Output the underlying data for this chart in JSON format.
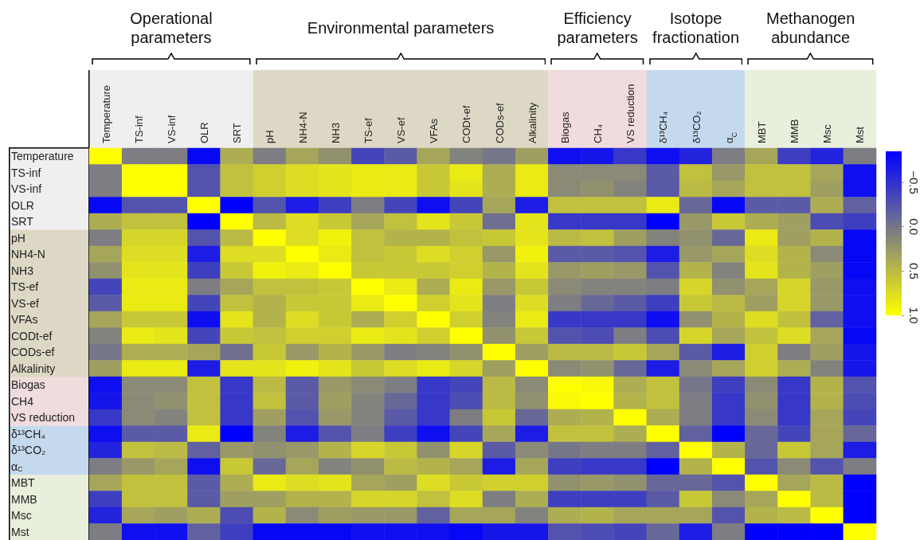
{
  "chart_data": {
    "type": "heatmap",
    "annotations": [
      "Operational parameters",
      "Environmental parameters",
      "Efficiency parameters",
      "Isotope fractionation",
      "Methanogen abundance"
    ],
    "categories": [
      "Temperature",
      "TS-inf",
      "VS-inf",
      "OLR",
      "SRT",
      "pH",
      "NH4-N",
      "NH3",
      "TS-ef",
      "VS-ef",
      "VFAs",
      "CODt-ef",
      "CODs-ef",
      "Alkalinity",
      "Biogas",
      "CH₄",
      "VS reduction",
      "δ¹³CH₄",
      "δ¹³CO₂",
      "α$_{C}$",
      "MBT",
      "MMB",
      "Msc",
      "Mst"
    ],
    "y_categories": [
      "Temperature",
      "TS-inf",
      "VS-inf",
      "OLR",
      "SRT",
      "pH",
      "NH4-N",
      "NH3",
      "TS-ef",
      "VS-ef",
      "VFAs",
      "CODt-ef",
      "CODs-ef",
      "Alkalinity",
      "Biogas",
      "CH4",
      "VS reduction",
      "δ¹³CH₄",
      "δ¹³CO₂",
      "α$_{C}$",
      "MBT",
      "MMB",
      "Msc",
      "Mst"
    ],
    "cells": [
      [
        1,
        0.05,
        0.05,
        -0.8,
        0.4,
        0.05,
        0.35,
        0.2,
        -0.35,
        -0.2,
        0.35,
        0.1,
        0,
        0.3,
        -0.75,
        -0.7,
        -0.45,
        -0.75,
        -0.6,
        0.05,
        0.35,
        -0.4,
        -0.6,
        0.05
      ],
      [
        0.05,
        1,
        1,
        -0.25,
        0.55,
        0.65,
        0.75,
        0.8,
        0.85,
        0.85,
        0.6,
        0.85,
        0.4,
        0.85,
        0.15,
        0.15,
        0.15,
        -0.2,
        0.55,
        0.25,
        0.55,
        0.55,
        0.35,
        -0.75
      ],
      [
        0.05,
        1,
        1,
        -0.25,
        0.55,
        0.65,
        0.75,
        0.8,
        0.85,
        0.85,
        0.6,
        0.8,
        0.4,
        0.85,
        0.15,
        0.2,
        0.1,
        -0.2,
        0.5,
        0.35,
        0.55,
        0.55,
        0.3,
        -0.75
      ],
      [
        -0.8,
        -0.25,
        -0.25,
        1,
        -0.85,
        -0.25,
        -0.65,
        -0.4,
        0.05,
        -0.35,
        -0.75,
        -0.35,
        0.35,
        -0.65,
        0.55,
        0.55,
        0.55,
        0.85,
        -0.1,
        -0.8,
        -0.2,
        -0.2,
        0.4,
        -0.15
      ],
      [
        0.4,
        0.55,
        0.55,
        -0.85,
        1,
        0.5,
        0.75,
        0.6,
        0.35,
        0.55,
        0.8,
        0.6,
        -0.05,
        0.8,
        -0.45,
        -0.45,
        -0.45,
        -0.85,
        0.25,
        0.6,
        0.4,
        0.3,
        -0.3,
        -0.4
      ],
      [
        0.05,
        0.7,
        0.7,
        -0.25,
        0.5,
        1,
        0.75,
        0.9,
        0.55,
        0.45,
        0.45,
        0.55,
        0.6,
        0.8,
        0.5,
        0.55,
        0.3,
        0.1,
        0.2,
        -0.1,
        0.85,
        0.3,
        0.45,
        -0.8
      ],
      [
        0.35,
        0.75,
        0.75,
        -0.65,
        0.75,
        0.75,
        1,
        0.85,
        0.55,
        0.6,
        0.75,
        0.65,
        0.25,
        0.9,
        -0.2,
        -0.2,
        -0.25,
        -0.65,
        0.25,
        0.35,
        0.75,
        0.45,
        0.15,
        -0.8
      ],
      [
        0.2,
        0.8,
        0.8,
        -0.4,
        0.6,
        0.9,
        0.85,
        1,
        0.6,
        0.6,
        0.6,
        0.65,
        0.45,
        0.8,
        0.25,
        0.3,
        0.25,
        -0.25,
        0.45,
        0.1,
        0.8,
        0.45,
        0.3,
        -0.8
      ],
      [
        -0.35,
        0.85,
        0.85,
        0.05,
        0.35,
        0.55,
        0.55,
        0.6,
        1,
        0.85,
        0.4,
        0.85,
        0.25,
        0.6,
        0.15,
        0.1,
        0.1,
        0.05,
        0.7,
        0.2,
        0.35,
        0.7,
        0.25,
        -0.75
      ],
      [
        -0.2,
        0.85,
        0.85,
        -0.35,
        0.55,
        0.45,
        0.6,
        0.6,
        0.85,
        1,
        0.65,
        0.8,
        0.05,
        0.75,
        0.05,
        -0.1,
        -0.2,
        -0.4,
        0.6,
        0.5,
        0.3,
        0.7,
        0.25,
        -0.75
      ],
      [
        0.35,
        0.6,
        0.6,
        -0.75,
        0.8,
        0.45,
        0.75,
        0.6,
        0.4,
        0.65,
        1,
        0.65,
        0.1,
        0.85,
        -0.45,
        -0.45,
        -0.45,
        -0.75,
        0.2,
        0.45,
        0.75,
        0.55,
        -0.15,
        -0.75
      ],
      [
        0.1,
        0.85,
        0.8,
        -0.35,
        0.6,
        0.55,
        0.65,
        0.65,
        0.85,
        0.8,
        0.65,
        1,
        0.2,
        0.6,
        -0.25,
        -0.3,
        0.05,
        -0.3,
        0.7,
        0.35,
        0.55,
        0.75,
        0.35,
        -0.8
      ],
      [
        0,
        0.4,
        0.4,
        0.35,
        -0.05,
        0.6,
        0.25,
        0.45,
        0.25,
        0.05,
        0.1,
        0.2,
        1,
        0.3,
        0.5,
        0.5,
        0.6,
        0.35,
        -0.2,
        -0.65,
        0.65,
        0.05,
        0.3,
        -0.7
      ],
      [
        0.3,
        0.85,
        0.85,
        -0.65,
        0.8,
        0.8,
        0.9,
        0.8,
        0.6,
        0.75,
        0.85,
        0.7,
        0.3,
        1,
        0.15,
        0.2,
        -0.1,
        -0.65,
        0.15,
        0.35,
        0.65,
        0.4,
        0.1,
        -0.7
      ],
      [
        -0.75,
        0.15,
        0.15,
        0.55,
        -0.45,
        0.5,
        -0.2,
        0.25,
        0.15,
        0.05,
        -0.45,
        -0.35,
        0.5,
        0.15,
        1,
        0.95,
        0.4,
        0.55,
        0,
        -0.4,
        0.15,
        -0.45,
        0.45,
        -0.25
      ],
      [
        -0.7,
        0.15,
        0.2,
        0.55,
        -0.45,
        0.55,
        -0.2,
        0.3,
        0.1,
        -0.1,
        -0.45,
        -0.3,
        0.5,
        0.2,
        0.95,
        1,
        0.45,
        0.55,
        0.05,
        -0.45,
        0.2,
        -0.45,
        0.45,
        -0.3
      ],
      [
        -0.45,
        0.15,
        0.1,
        0.55,
        -0.45,
        0.3,
        -0.25,
        0.25,
        0.1,
        -0.2,
        -0.45,
        0.05,
        0.6,
        -0.1,
        0.4,
        0.45,
        1,
        0.4,
        0.05,
        -0.45,
        0.15,
        -0.45,
        0.35,
        -0.35
      ],
      [
        -0.75,
        -0.2,
        -0.2,
        0.85,
        -0.85,
        0.1,
        -0.65,
        -0.25,
        0.05,
        -0.4,
        -0.75,
        -0.35,
        0.35,
        -0.65,
        0.55,
        0.55,
        0.4,
        1,
        -0.15,
        -0.85,
        -0.1,
        -0.35,
        0.35,
        -0.1
      ],
      [
        -0.6,
        0.55,
        0.5,
        -0.15,
        0.25,
        0.2,
        0.25,
        0.45,
        0.7,
        0.6,
        0.2,
        0.7,
        -0.2,
        0.15,
        0,
        0.05,
        0.05,
        -0.15,
        1,
        0.45,
        -0.1,
        0.6,
        0.35,
        -0.65
      ],
      [
        0.05,
        0.25,
        0.35,
        -0.75,
        0.6,
        -0.1,
        0.35,
        0.1,
        0.2,
        0.5,
        0.45,
        0.35,
        -0.65,
        0.35,
        -0.4,
        -0.45,
        -0.45,
        -0.85,
        0.45,
        1,
        -0.25,
        0.15,
        -0.25,
        0.05
      ],
      [
        0.35,
        0.55,
        0.55,
        -0.2,
        0.4,
        0.85,
        0.75,
        0.8,
        0.35,
        0.3,
        0.75,
        0.6,
        0.65,
        0.65,
        0.2,
        0.25,
        0.2,
        -0.1,
        -0.1,
        -0.25,
        1,
        0.35,
        0.5,
        -0.85
      ],
      [
        -0.4,
        0.55,
        0.55,
        -0.2,
        0.3,
        0.3,
        0.45,
        0.45,
        0.7,
        0.7,
        0.55,
        0.75,
        0.05,
        0.4,
        -0.4,
        -0.4,
        -0.4,
        -0.2,
        0.6,
        0.15,
        0.35,
        1,
        0.5,
        -0.85
      ],
      [
        -0.6,
        0.35,
        0.3,
        0.4,
        -0.3,
        0.45,
        0.15,
        0.3,
        0.25,
        0.25,
        -0.15,
        0.35,
        0.35,
        0.1,
        0.4,
        0.45,
        0.35,
        0.35,
        0.35,
        -0.25,
        0.45,
        0.5,
        1,
        -0.85
      ],
      [
        0.05,
        -0.75,
        -0.75,
        -0.15,
        -0.4,
        -0.8,
        -0.8,
        -0.8,
        -0.75,
        -0.75,
        -0.75,
        -0.8,
        -0.7,
        -0.7,
        -0.25,
        -0.3,
        -0.35,
        -0.1,
        -0.65,
        0.05,
        -0.85,
        -0.85,
        -0.85,
        1
      ]
    ],
    "clim": [
      -0.85,
      1
    ],
    "cticks": [
      {
        "value": -0.5,
        "label": "−0.5"
      },
      {
        "value": 0,
        "label": "0.0"
      },
      {
        "value": 0.5,
        "label": "0.5"
      },
      {
        "value": 1,
        "label": "1.0"
      }
    ]
  }
}
